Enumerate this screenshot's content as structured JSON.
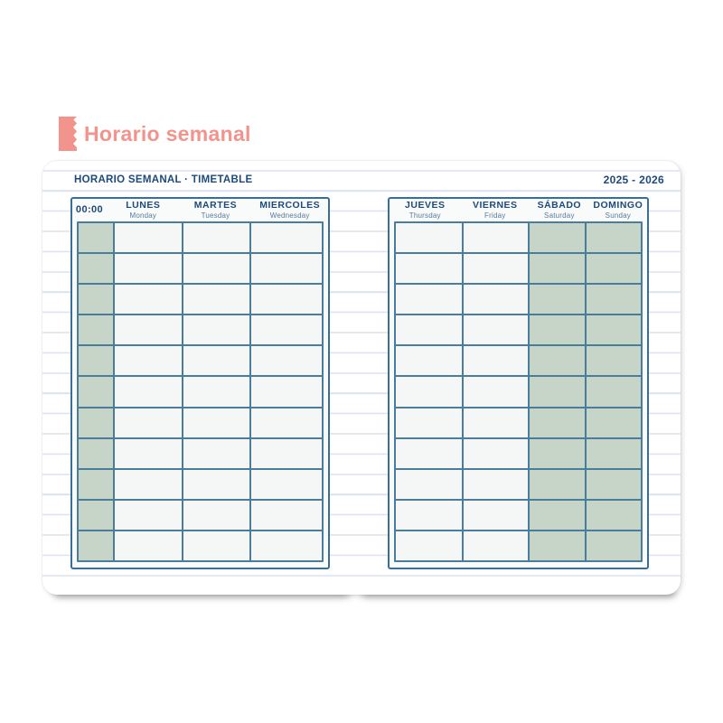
{
  "title": {
    "label": "Horario semanal"
  },
  "sheet": {
    "header": {
      "title": "HORARIO SEMANAL · TIMETABLE",
      "years": "2025 - 2026"
    },
    "row_count": 11,
    "tables": [
      {
        "name": "left-page",
        "columns": [
          {
            "type": "time",
            "label": "00:00",
            "sublabel": "",
            "shaded": true
          },
          {
            "type": "weekday",
            "label": "LUNES",
            "sublabel": "Monday",
            "shaded": false
          },
          {
            "type": "weekday",
            "label": "MARTES",
            "sublabel": "Tuesday",
            "shaded": false
          },
          {
            "type": "weekday",
            "label": "MIERCOLES",
            "sublabel": "Wednesday",
            "shaded": false
          }
        ]
      },
      {
        "name": "right-page",
        "columns": [
          {
            "type": "weekday",
            "label": "JUEVES",
            "sublabel": "Thursday",
            "shaded": false
          },
          {
            "type": "weekday",
            "label": "VIERNES",
            "sublabel": "Friday",
            "shaded": false
          },
          {
            "type": "weekend",
            "label": "SÁBADO",
            "sublabel": "Saturday",
            "shaded": true
          },
          {
            "type": "weekend",
            "label": "DOMINGO",
            "sublabel": "Sunday",
            "shaded": true
          }
        ]
      }
    ]
  },
  "colors": {
    "accent_coral": "#f2938c",
    "navy_text": "#1c4a7c",
    "sub_text": "#56799f",
    "frame_border": "#3b6e95",
    "grid_line": "#4a7c9c",
    "weekend_fill": "#c6d5c8",
    "cell_fill": "#f4f7f6",
    "rule_line": "#dbe1ed"
  }
}
